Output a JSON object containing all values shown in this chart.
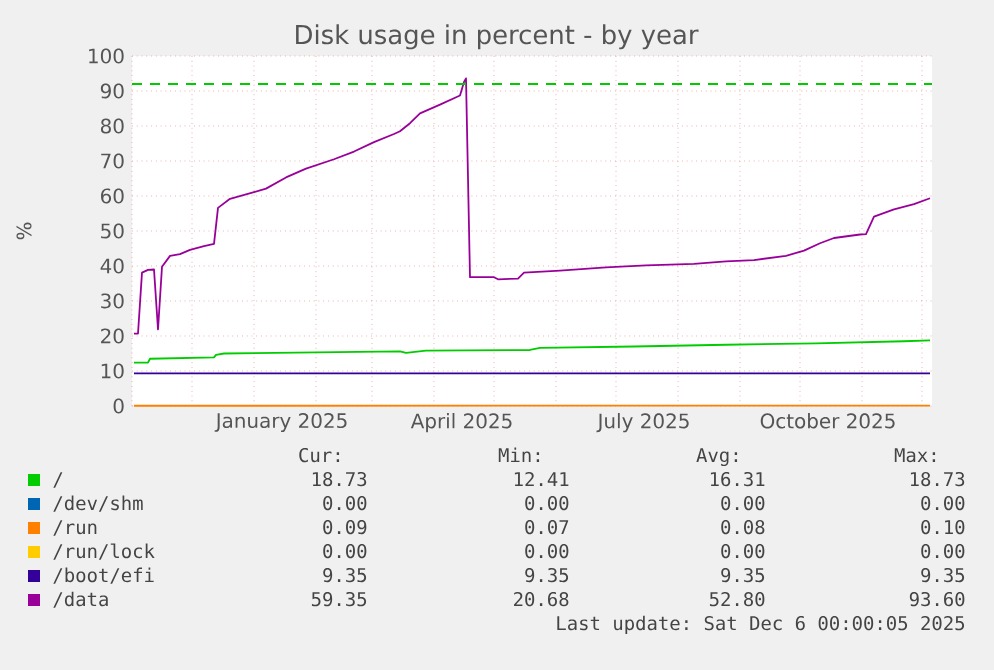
{
  "chart_data": {
    "type": "line",
    "title": "Disk usage in percent - by year",
    "ylabel": "%",
    "xlim": [
      "2024-11-01",
      "2025-12-06"
    ],
    "ylim": [
      0,
      100
    ],
    "yticks": [
      0,
      10,
      20,
      30,
      40,
      50,
      60,
      70,
      80,
      90,
      100
    ],
    "xticks": [
      {
        "value": "2024-11-01",
        "label": null
      },
      {
        "value": "2024-12-01",
        "label": null
      },
      {
        "value": "2025-01-01",
        "label": null
      },
      {
        "value": "2025-02-01",
        "label": null
      },
      {
        "value": "2025-03-01",
        "label": null
      },
      {
        "value": "2025-04-01",
        "label": null
      },
      {
        "value": "2025-05-01",
        "label": null
      },
      {
        "value": "2025-06-01",
        "label": null
      },
      {
        "value": "2025-07-01",
        "label": null
      },
      {
        "value": "2025-08-01",
        "label": null
      },
      {
        "value": "2025-09-01",
        "label": null
      },
      {
        "value": "2025-10-01",
        "label": null
      },
      {
        "value": "2025-11-01",
        "label": null
      },
      {
        "value": "2025-12-01",
        "label": null
      },
      {
        "value": "2025-01-15",
        "label": "January 2025"
      },
      {
        "value": "2025-04-15",
        "label": "April 2025"
      },
      {
        "value": "2025-07-15",
        "label": "July 2025"
      },
      {
        "value": "2025-10-15",
        "label": "October 2025"
      }
    ],
    "grid": true,
    "legend": "bottom",
    "ref_lines": [
      {
        "axis": "y",
        "value": 92,
        "color": "#00cc00",
        "line_style": "dashed"
      }
    ],
    "series": [
      {
        "name": "/",
        "color": "#00cc00",
        "x": [
          "2024-11-02",
          "2024-11-09",
          "2024-11-10",
          "2024-12-12",
          "2024-12-13",
          "2024-12-17",
          "2025-03-15",
          "2025-03-18",
          "2025-03-28",
          "2025-05-19",
          "2025-05-24",
          "2025-07-10",
          "2025-08-25",
          "2025-10-09",
          "2025-11-22",
          "2025-12-05"
        ],
        "values": [
          12.41,
          12.41,
          13.5,
          13.9,
          14.6,
          15.0,
          15.6,
          15.2,
          15.8,
          16.0,
          16.6,
          17.0,
          17.5,
          17.9,
          18.5,
          18.73
        ]
      },
      {
        "name": "/dev/shm",
        "color": "#0066b3"
      },
      {
        "name": "/run",
        "color": "#ff8000",
        "x": [
          "2024-11-02",
          "2025-12-05"
        ],
        "values": [
          0.07,
          0.09
        ]
      },
      {
        "name": "/run/lock",
        "color": "#ffcc00"
      },
      {
        "name": "/boot/efi",
        "color": "#330099",
        "x": [
          "2024-11-02",
          "2025-12-05"
        ],
        "values": [
          9.35,
          9.35
        ]
      },
      {
        "name": "/data",
        "color": "#990099",
        "x": [
          "2024-11-02",
          "2024-11-04",
          "2024-11-06",
          "2024-11-09",
          "2024-11-12",
          "2024-11-14",
          "2024-11-16",
          "2024-11-20",
          "2024-11-25",
          "2024-11-30",
          "2024-12-07",
          "2024-12-12",
          "2024-12-14",
          "2024-12-20",
          "2025-01-01",
          "2025-01-07",
          "2025-01-17",
          "2025-01-27",
          "2025-02-10",
          "2025-02-20",
          "2025-03-02",
          "2025-03-12",
          "2025-03-15",
          "2025-03-20",
          "2025-03-25",
          "2025-04-04",
          "2025-04-14",
          "2025-04-16",
          "2025-04-17",
          "2025-04-19",
          "2025-05-01",
          "2025-05-03",
          "2025-05-13",
          "2025-05-16",
          "2025-06-03",
          "2025-06-26",
          "2025-07-16",
          "2025-08-09",
          "2025-08-25",
          "2025-09-08",
          "2025-09-24",
          "2025-10-03",
          "2025-10-11",
          "2025-10-18",
          "2025-10-31",
          "2025-11-03",
          "2025-11-07",
          "2025-11-17",
          "2025-11-27",
          "2025-12-05"
        ],
        "values": [
          20.7,
          20.7,
          38.1,
          38.9,
          39.0,
          21.9,
          39.8,
          42.9,
          43.4,
          44.6,
          45.7,
          46.3,
          56.6,
          59.2,
          61.1,
          62.1,
          65.3,
          67.8,
          70.5,
          72.7,
          75.4,
          77.7,
          78.5,
          80.8,
          83.6,
          86.1,
          88.7,
          92.6,
          93.6,
          36.8,
          36.8,
          36.2,
          36.4,
          38.1,
          38.7,
          39.6,
          40.2,
          40.6,
          41.3,
          41.7,
          42.9,
          44.4,
          46.5,
          48,
          49,
          49.1,
          54.1,
          56.2,
          57.7,
          59.35
        ]
      }
    ],
    "annotations": [
      "Cur:",
      "Min:",
      "Avg:",
      "Max:",
      "18.73",
      "12.41",
      "16.31",
      "18.73",
      "0.00",
      "0.00",
      "0.00",
      "0.00",
      "0.09",
      "0.07",
      "0.08",
      "0.10",
      "0.00",
      "0.00",
      "0.00",
      "0.00",
      "9.35",
      "9.35",
      "9.35",
      "9.35",
      "59.35",
      "20.68",
      "52.80",
      "93.60",
      "Last update: Sat Dec  6 00:00:05 2025"
    ]
  }
}
